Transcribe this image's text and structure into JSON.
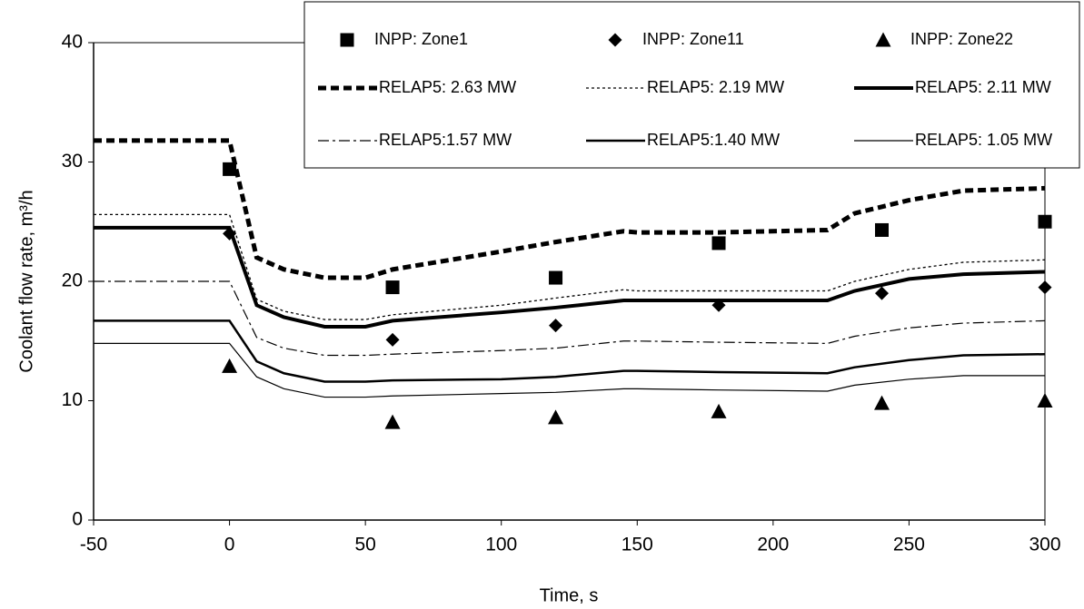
{
  "chart_data": {
    "type": "line",
    "x_label": "Time, s",
    "y_label": "Coolant flow rate, m³/h",
    "xlim": [
      -50,
      300
    ],
    "xticks": [
      -50,
      0,
      50,
      100,
      150,
      200,
      250,
      300
    ],
    "ylim": [
      0,
      40
    ],
    "yticks": [
      0,
      10,
      20,
      30,
      40
    ],
    "grid": false,
    "legend": "top-right",
    "series": [
      {
        "name": "INPP: Zone1",
        "kind": "scatter",
        "marker": "square",
        "color": "#000000",
        "x": [
          0,
          60,
          120,
          180,
          240,
          300
        ],
        "values": [
          29.4,
          19.5,
          20.3,
          23.2,
          24.3,
          25.0
        ]
      },
      {
        "name": "INPP: Zone11",
        "kind": "scatter",
        "marker": "diamond",
        "color": "#000000",
        "x": [
          0,
          60,
          120,
          180,
          240,
          300
        ],
        "values": [
          24.0,
          15.1,
          16.3,
          18.0,
          19.0,
          19.5
        ]
      },
      {
        "name": "INPP: Zone22",
        "kind": "scatter",
        "marker": "triangle",
        "color": "#000000",
        "x": [
          0,
          60,
          120,
          180,
          240,
          300
        ],
        "values": [
          12.9,
          8.2,
          8.6,
          9.1,
          9.8,
          10.0
        ]
      },
      {
        "name": "RELAP5: 2.63 MW",
        "kind": "line",
        "style": "thick-dashed",
        "color": "#000000",
        "x": [
          -50,
          0,
          10,
          20,
          35,
          50,
          60,
          100,
          120,
          145,
          150,
          180,
          220,
          230,
          250,
          270,
          300
        ],
        "values": [
          31.8,
          31.8,
          22.0,
          21.0,
          20.3,
          20.3,
          21.0,
          22.5,
          23.3,
          24.2,
          24.1,
          24.1,
          24.3,
          25.7,
          26.8,
          27.6,
          27.8
        ]
      },
      {
        "name": "RELAP5: 2.19 MW",
        "kind": "line",
        "style": "dotted",
        "color": "#000000",
        "x": [
          -50,
          0,
          10,
          20,
          35,
          50,
          60,
          100,
          120,
          145,
          150,
          180,
          220,
          230,
          250,
          270,
          300
        ],
        "values": [
          25.6,
          25.6,
          18.5,
          17.5,
          16.8,
          16.8,
          17.2,
          18.0,
          18.6,
          19.3,
          19.2,
          19.2,
          19.2,
          20.0,
          21.0,
          21.6,
          21.8
        ]
      },
      {
        "name": "RELAP5: 2.11 MW",
        "kind": "line",
        "style": "thick",
        "color": "#000000",
        "x": [
          -50,
          0,
          10,
          20,
          35,
          50,
          60,
          100,
          120,
          145,
          150,
          180,
          220,
          230,
          250,
          270,
          300
        ],
        "values": [
          24.5,
          24.5,
          18.0,
          17.0,
          16.2,
          16.2,
          16.7,
          17.4,
          17.8,
          18.4,
          18.4,
          18.4,
          18.4,
          19.2,
          20.2,
          20.6,
          20.8
        ]
      },
      {
        "name": "RELAP5:1.57 MW",
        "kind": "line",
        "style": "dash-dot",
        "color": "#000000",
        "x": [
          -50,
          0,
          10,
          20,
          35,
          50,
          60,
          100,
          120,
          145,
          150,
          180,
          220,
          230,
          250,
          270,
          300
        ],
        "values": [
          20.0,
          20.0,
          15.3,
          14.4,
          13.8,
          13.8,
          13.9,
          14.2,
          14.4,
          15.0,
          15.0,
          14.9,
          14.8,
          15.4,
          16.1,
          16.5,
          16.7
        ]
      },
      {
        "name": "RELAP5:1.40 MW",
        "kind": "line",
        "style": "medium",
        "color": "#000000",
        "x": [
          -50,
          0,
          10,
          20,
          35,
          50,
          60,
          100,
          120,
          145,
          150,
          180,
          220,
          230,
          250,
          270,
          300
        ],
        "values": [
          16.7,
          16.7,
          13.3,
          12.3,
          11.6,
          11.6,
          11.7,
          11.8,
          12.0,
          12.5,
          12.5,
          12.4,
          12.3,
          12.8,
          13.4,
          13.8,
          13.9
        ]
      },
      {
        "name": "RELAP5: 1.05 MW",
        "kind": "line",
        "style": "thin",
        "color": "#000000",
        "x": [
          -50,
          0,
          10,
          20,
          35,
          50,
          60,
          100,
          120,
          145,
          150,
          180,
          220,
          230,
          250,
          270,
          300
        ],
        "values": [
          14.8,
          14.8,
          12.0,
          11.0,
          10.3,
          10.3,
          10.4,
          10.6,
          10.7,
          11.0,
          11.0,
          10.9,
          10.8,
          11.3,
          11.8,
          12.1,
          12.1
        ]
      }
    ]
  }
}
